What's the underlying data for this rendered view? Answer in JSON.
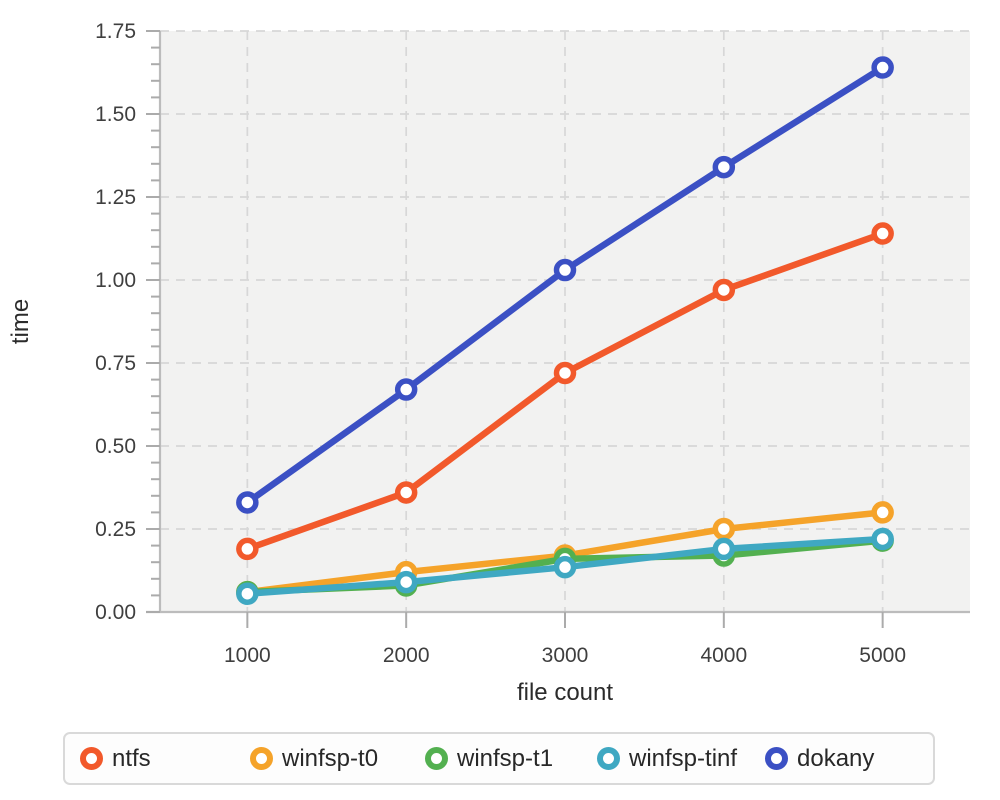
{
  "chart_data": {
    "type": "line",
    "title": "",
    "xlabel": "file count",
    "ylabel": "time",
    "x": [
      1000,
      2000,
      3000,
      4000,
      5000
    ],
    "series": [
      {
        "name": "ntfs",
        "color": "#f2592b",
        "values": [
          0.19,
          0.36,
          0.72,
          0.97,
          1.14
        ]
      },
      {
        "name": "winfsp-t0",
        "color": "#f5a32a",
        "values": [
          0.06,
          0.12,
          0.17,
          0.25,
          0.3
        ]
      },
      {
        "name": "winfsp-t1",
        "color": "#53b050",
        "values": [
          0.06,
          0.08,
          0.16,
          0.17,
          0.215
        ]
      },
      {
        "name": "winfsp-tinf",
        "color": "#3fa8c2",
        "values": [
          0.055,
          0.09,
          0.135,
          0.19,
          0.22
        ]
      },
      {
        "name": "dokany",
        "color": "#3b50c4",
        "values": [
          0.33,
          0.67,
          1.03,
          1.34,
          1.64
        ]
      }
    ],
    "xticks": [
      1000,
      2000,
      3000,
      4000,
      5000
    ],
    "ytick_labels": [
      "0.00",
      "0.25",
      "0.50",
      "0.75",
      "1.00",
      "1.25",
      "1.50",
      "1.75"
    ],
    "ylim": [
      0,
      1.75
    ],
    "ytick_step": 0.25,
    "ytick_minor_step": 0.05,
    "xlim": [
      450,
      5550
    ],
    "grid": "dashed",
    "legend_position": "bottom",
    "colors": {
      "plot_background": "#f2f2f1",
      "grid_line": "#d7d7d7",
      "axis_spine": "#bcbcbc",
      "tick_mark": "#ababab",
      "tick_label": "#3f3f3f",
      "axis_title": "#2b2b2b",
      "marker_fill": "#ffffff",
      "legend_border": "#d9d9d9",
      "legend_text": "#282828"
    }
  }
}
